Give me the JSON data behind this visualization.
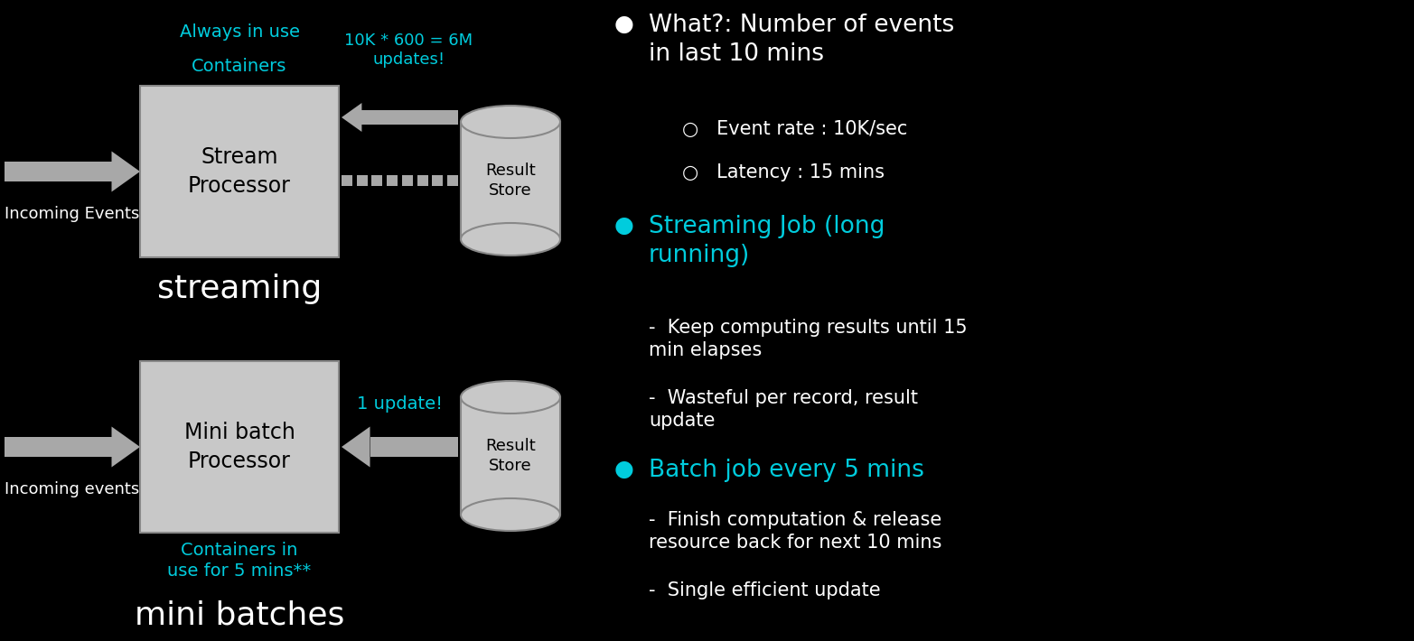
{
  "bg_color": "#000000",
  "cyan_color": "#00CCDD",
  "white_color": "#FFFFFF",
  "box_fill": "#C8C8C8",
  "box_edge": "#888888",
  "arrow_color": "#A8A8A8",
  "stream_box_label": "Stream\nProcessor",
  "stream_label": "streaming",
  "stream_incoming": "Incoming Events",
  "stream_containers_line1": "Containers",
  "stream_containers_line2": "Always in use",
  "stream_updates": "10K * 600 = 6M\nupdates!",
  "batch_box_label": "Mini batch\nProcessor",
  "batch_label": "mini batches",
  "batch_incoming": "Incoming events",
  "batch_containers": "Containers in\nuse for 5 mins**",
  "batch_update": "1 update!",
  "result_store": "Result\nStore",
  "bullet1_title": "What?: Number of events\nin last 10 mins",
  "bullet1_sub1": "Event rate : 10K/sec",
  "bullet1_sub2": "Latency : 15 mins",
  "bullet2_title": "Streaming Job (long\nrunning)",
  "bullet2_sub1": "Keep computing results until 15\nmin elapses",
  "bullet2_sub2": "Wasteful per record, result\nupdate",
  "bullet3_title": "Batch job every 5 mins",
  "bullet3_sub1": "Finish computation & release\nresource back for next 10 mins",
  "bullet3_sub2": "Single efficient update"
}
